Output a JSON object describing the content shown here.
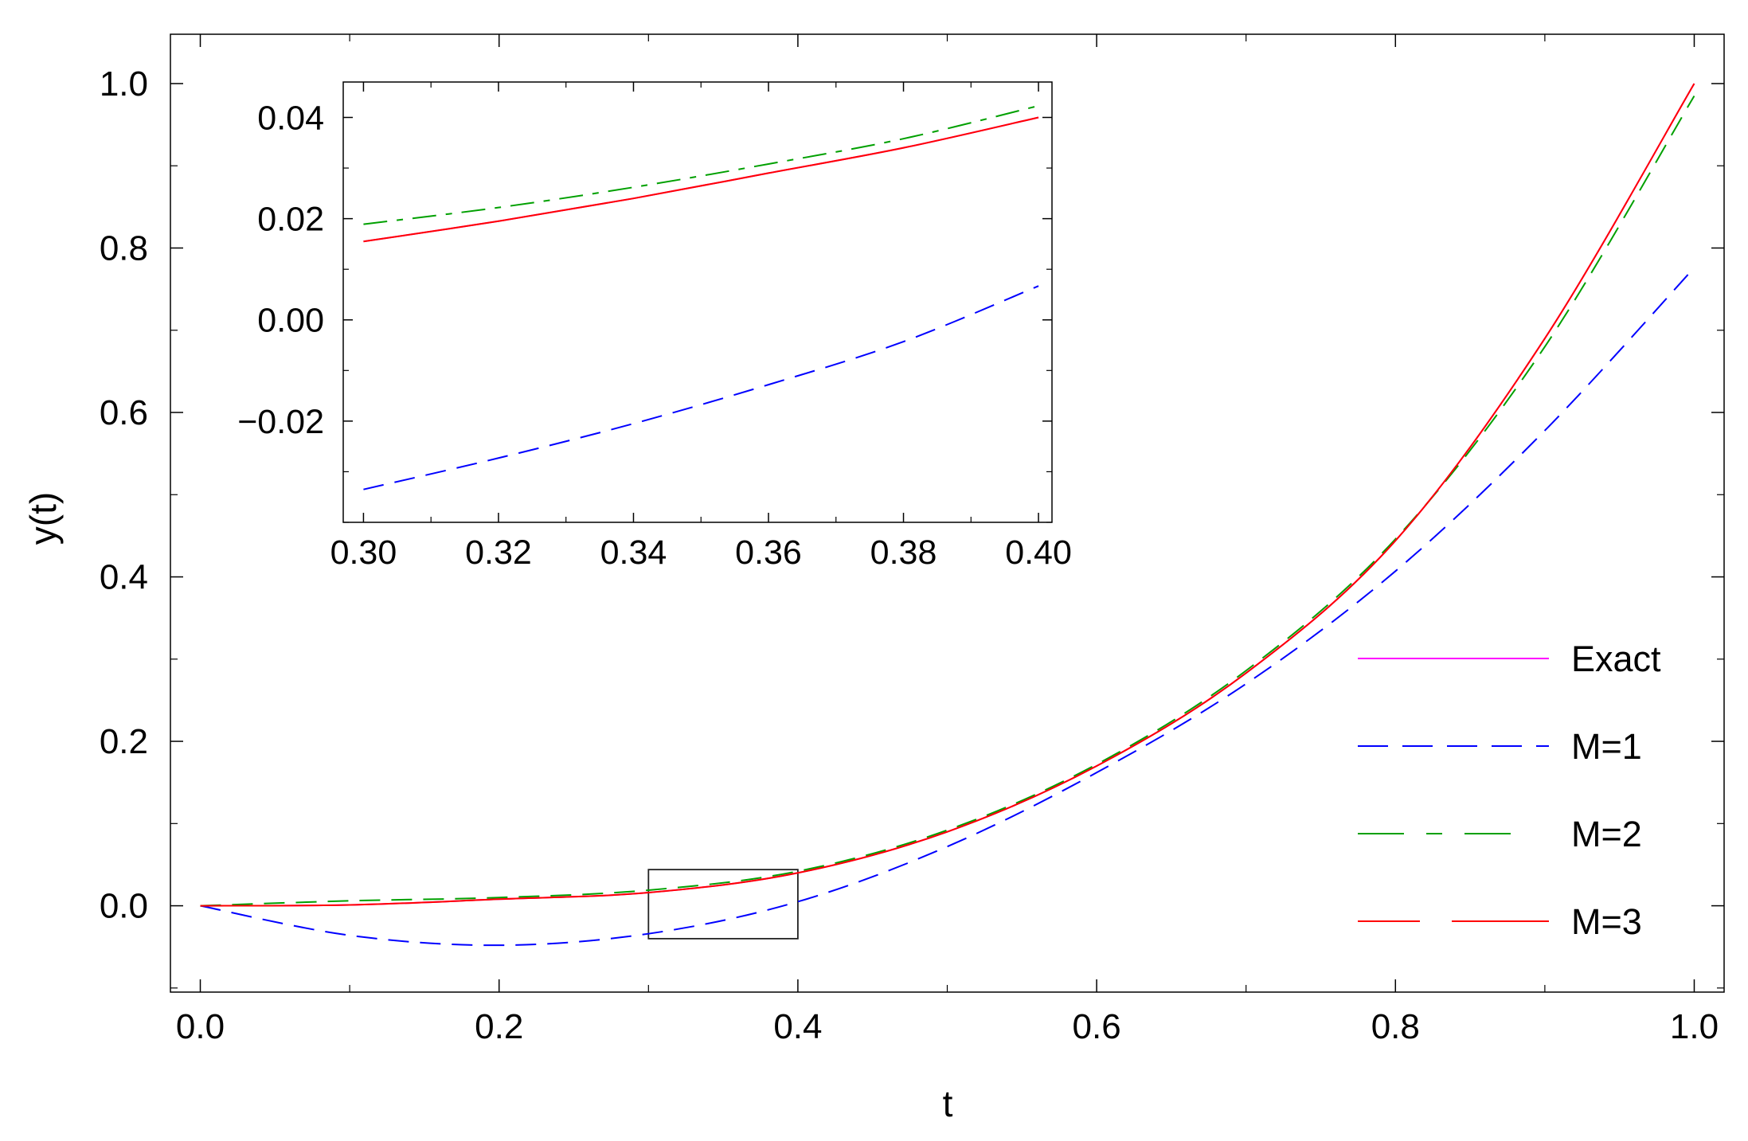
{
  "chart_data": [
    {
      "type": "line",
      "role": "main",
      "xlabel": "t",
      "ylabel": "y(t)",
      "xlim": [
        -0.02,
        1.02
      ],
      "ylim": [
        -0.105,
        1.06
      ],
      "xticks": [
        0.0,
        0.2,
        0.4,
        0.6,
        0.8,
        1.0
      ],
      "xtick_labels": [
        "0.0",
        "0.2",
        "0.4",
        "0.6",
        "0.8",
        "1.0"
      ],
      "yticks": [
        0.0,
        0.2,
        0.4,
        0.6,
        0.8,
        1.0
      ],
      "ytick_labels": [
        "0.0",
        "0.2",
        "0.4",
        "0.6",
        "0.8",
        "1.0"
      ],
      "grid": false,
      "legend_position": "right",
      "zoom_box": {
        "x": [
          0.3,
          0.4
        ],
        "y": [
          -0.04,
          0.044
        ]
      },
      "series": [
        {
          "name": "Exact",
          "color": "#ff00ff",
          "style": "solid",
          "x": [
            0,
            0.1,
            0.2,
            0.3,
            0.4,
            0.5,
            0.6,
            0.7,
            0.8,
            0.9,
            1.0
          ],
          "y": [
            0,
            0.001,
            0.008,
            0.016,
            0.04,
            0.09,
            0.17,
            0.283,
            0.444,
            0.69,
            1.0
          ]
        },
        {
          "name": "M=1",
          "color": "#0000ff",
          "style": "dashed",
          "x": [
            0,
            0.1,
            0.2,
            0.3,
            0.4,
            0.5,
            0.6,
            0.7,
            0.8,
            0.9,
            1.0
          ],
          "y": [
            0,
            -0.036,
            -0.048,
            -0.034,
            0.005,
            0.072,
            0.162,
            0.27,
            0.407,
            0.578,
            0.776
          ]
        },
        {
          "name": "M=2",
          "color": "#00a000",
          "style": "dashed",
          "x": [
            0,
            0.1,
            0.2,
            0.3,
            0.4,
            0.5,
            0.6,
            0.7,
            0.8,
            0.9,
            1.0
          ],
          "y": [
            0,
            0.006,
            0.01,
            0.019,
            0.042,
            0.092,
            0.172,
            0.286,
            0.446,
            0.68,
            0.985
          ]
        },
        {
          "name": "M=3",
          "color": "#ff0000",
          "style": "long-dash-solid",
          "x": [
            0,
            0.1,
            0.2,
            0.3,
            0.4,
            0.5,
            0.6,
            0.7,
            0.8,
            0.9,
            1.0
          ],
          "y": [
            0,
            0.001,
            0.008,
            0.016,
            0.04,
            0.09,
            0.17,
            0.283,
            0.444,
            0.69,
            1.0
          ]
        }
      ]
    },
    {
      "type": "line",
      "role": "inset",
      "xlim": [
        0.297,
        0.402
      ],
      "ylim": [
        -0.04,
        0.047
      ],
      "xticks": [
        0.3,
        0.32,
        0.34,
        0.36,
        0.38,
        0.4
      ],
      "xtick_labels": [
        "0.30",
        "0.32",
        "0.34",
        "0.36",
        "0.38",
        "0.40"
      ],
      "yticks": [
        -0.02,
        0.0,
        0.02,
        0.04
      ],
      "ytick_labels": [
        "−0.02",
        "0.00",
        "0.02",
        "0.04"
      ],
      "grid": false,
      "series": [
        {
          "name": "Exact",
          "color": "#ff00ff",
          "style": "solid",
          "x": [
            0.3,
            0.32,
            0.34,
            0.36,
            0.38,
            0.4
          ],
          "y": [
            0.0155,
            0.0195,
            0.024,
            0.029,
            0.034,
            0.04
          ]
        },
        {
          "name": "M=1",
          "color": "#0000ff",
          "style": "dashed",
          "x": [
            0.3,
            0.32,
            0.34,
            0.36,
            0.38,
            0.4
          ],
          "y": [
            -0.0335,
            -0.0273,
            -0.0205,
            -0.0128,
            -0.0043,
            0.0067
          ]
        },
        {
          "name": "M=2",
          "color": "#00a000",
          "style": "dash-dot",
          "x": [
            0.3,
            0.32,
            0.34,
            0.36,
            0.38,
            0.4
          ],
          "y": [
            0.0189,
            0.0222,
            0.0262,
            0.0308,
            0.0358,
            0.0423
          ]
        },
        {
          "name": "M=3",
          "color": "#ff0000",
          "style": "solid",
          "x": [
            0.3,
            0.32,
            0.34,
            0.36,
            0.38,
            0.4
          ],
          "y": [
            0.0155,
            0.0195,
            0.024,
            0.029,
            0.034,
            0.04
          ]
        }
      ]
    }
  ]
}
